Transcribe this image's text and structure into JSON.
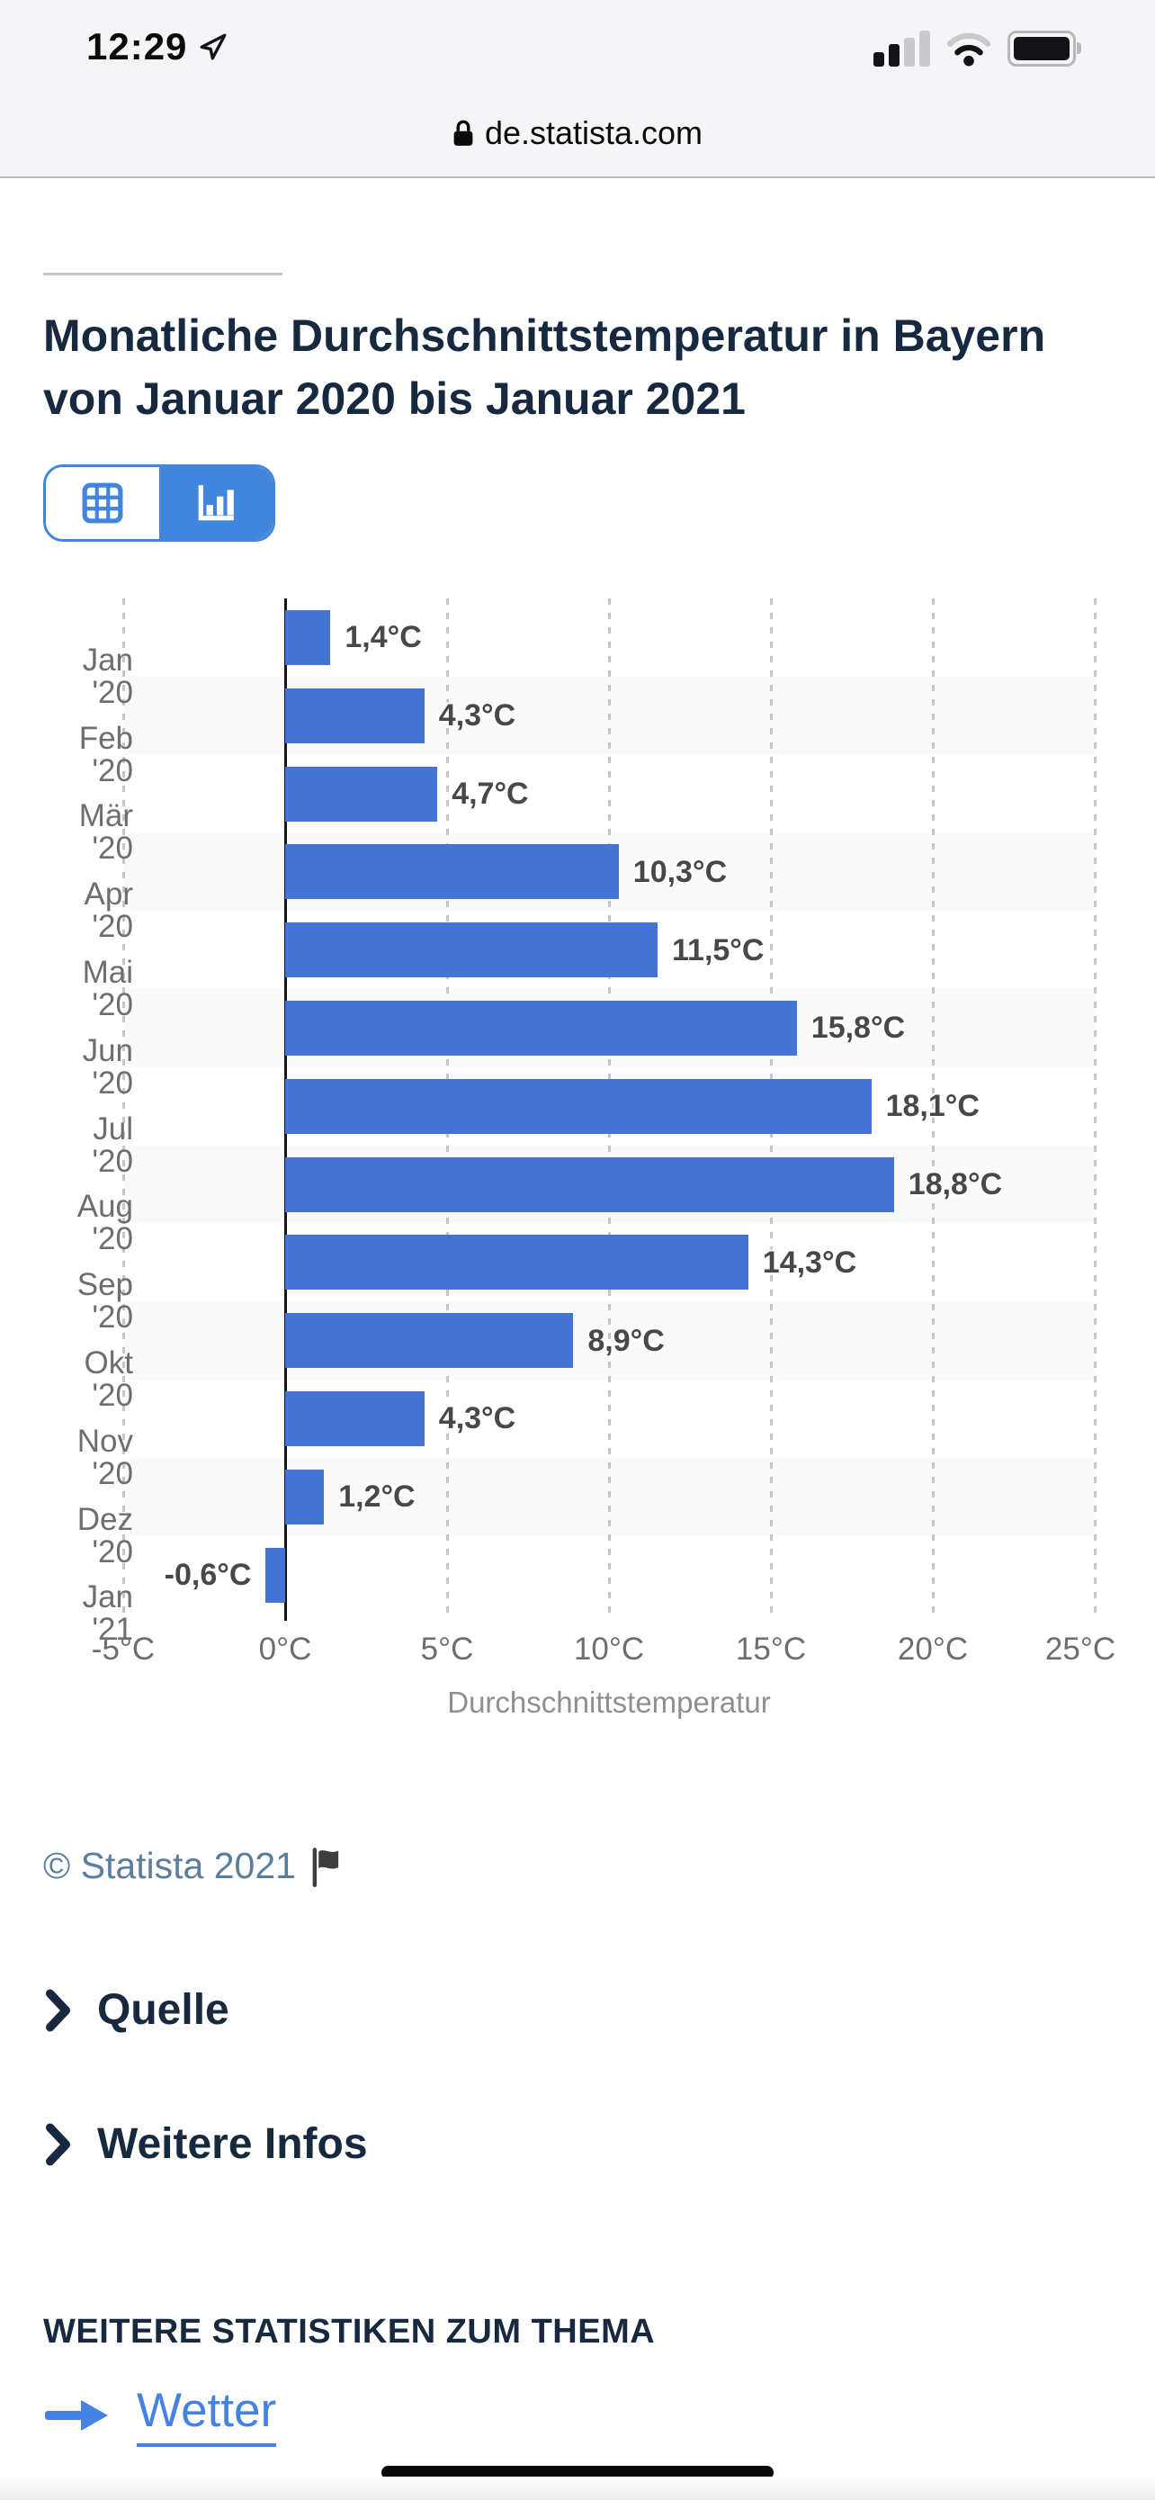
{
  "status_bar": {
    "time": "12:29"
  },
  "browser": {
    "url": "de.statista.com"
  },
  "page": {
    "title": "Monatliche Durchschnittstemperatur in Bayern von Januar 2020 bis Januar 2021",
    "copyright": "© Statista 2021",
    "quelle_label": "Quelle",
    "weitere_infos_label": "Weitere Infos",
    "more_statistics_heading": "WEITERE STATISTIKEN ZUM THEMA",
    "related_topic_link": "Wetter"
  },
  "colors": {
    "accent_blue": "#4285dc",
    "link_blue": "#4483e3",
    "navy": "#16293f",
    "bar_blue": "#4374d4",
    "alternate_band": "#fafafa"
  },
  "chart_data": {
    "type": "bar",
    "orientation": "horizontal",
    "title": "Monatliche Durchschnittstemperatur in Bayern von Januar 2020 bis Januar 2021",
    "categories": [
      "Jan '20",
      "Feb '20",
      "Mär '20",
      "Apr '20",
      "Mai '20",
      "Jun '20",
      "Jul '20",
      "Aug '20",
      "Sep '20",
      "Okt '20",
      "Nov '20",
      "Dez '20",
      "Jan '21"
    ],
    "values": [
      1.4,
      4.3,
      4.7,
      10.3,
      11.5,
      15.8,
      18.1,
      18.8,
      14.3,
      8.9,
      4.3,
      1.2,
      -0.6
    ],
    "value_labels": [
      "1,4°C",
      "4,3°C",
      "4,7°C",
      "10,3°C",
      "11,5°C",
      "15,8°C",
      "18,1°C",
      "18,8°C",
      "14,3°C",
      "8,9°C",
      "4,3°C",
      "1,2°C",
      "-0,6°C"
    ],
    "xlabel": "Durchschnittstemperatur",
    "x_ticks": [
      -5,
      0,
      5,
      10,
      15,
      20,
      25
    ],
    "x_tick_labels": [
      "-5°C",
      "0°C",
      "5°C",
      "10°C",
      "15°C",
      "20°C",
      "25°C"
    ],
    "xlim": [
      -5,
      25
    ],
    "bar_color": "#4374d4",
    "grid": "vertical-dashed",
    "legend": "none"
  }
}
